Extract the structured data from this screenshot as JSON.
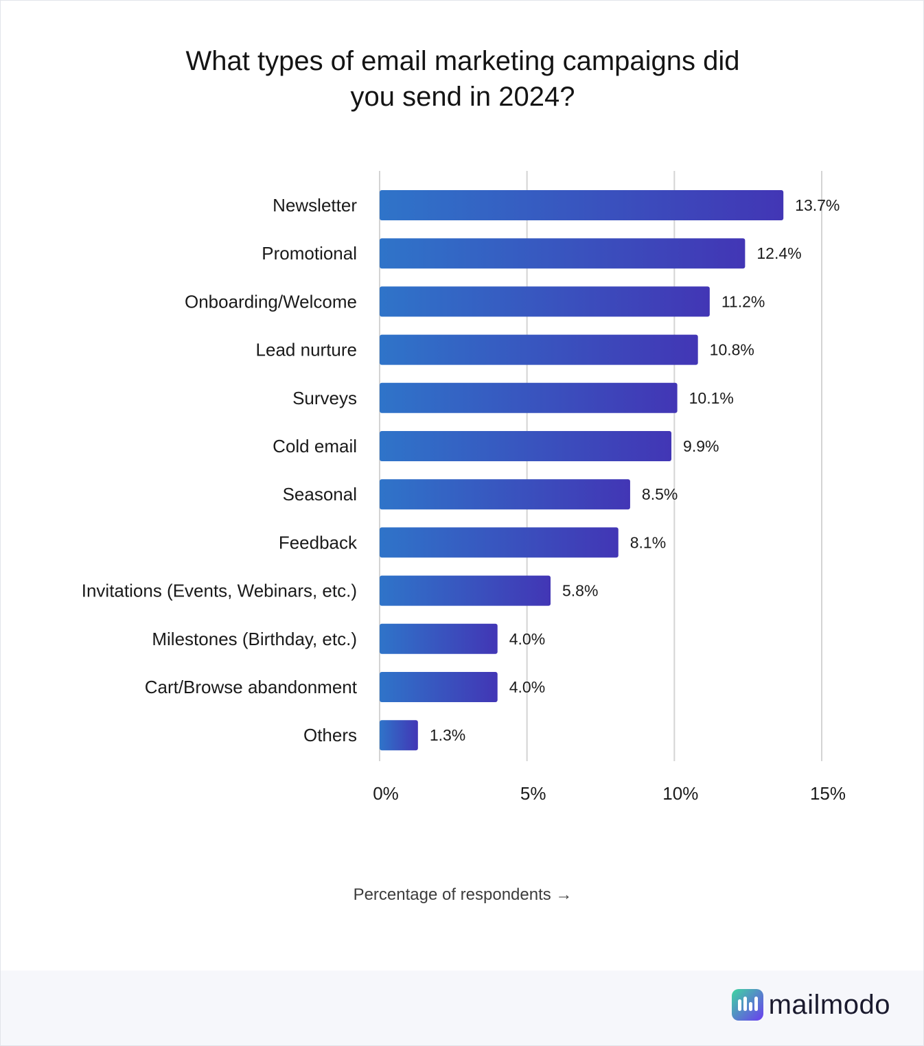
{
  "title_line1": "What types of email marketing campaigns did",
  "title_line2": "you send in 2024?",
  "x_axis_label": "Percentage of respondents →",
  "brand": {
    "name": "mailmodo",
    "icon": "mailmodo-logo-icon"
  },
  "colors": {
    "bar_start": "#2f74c9",
    "bar_end": "#4236b5",
    "grid": "#d4d4d4"
  },
  "chart_data": {
    "type": "bar",
    "orientation": "horizontal",
    "title": "What types of email marketing campaigns did you send in 2024?",
    "xlabel": "Percentage of respondents →",
    "ylabel": "",
    "categories": [
      "Newsletter",
      "Promotional",
      "Onboarding/Welcome",
      "Lead nurture",
      "Surveys",
      "Cold email",
      "Seasonal",
      "Feedback",
      "Invitations (Events, Webinars, etc.)",
      "Milestones (Birthday, etc.)",
      "Cart/Browse abandonment",
      "Others"
    ],
    "values": [
      13.7,
      12.4,
      11.2,
      10.8,
      10.1,
      9.9,
      8.5,
      8.1,
      5.8,
      4.0,
      4.0,
      1.3
    ],
    "value_labels": [
      "13.7%",
      "12.4%",
      "11.2%",
      "10.8%",
      "10.1%",
      "9.9%",
      "8.5%",
      "8.1%",
      "5.8%",
      "4.0%",
      "4.0%",
      "1.3%"
    ],
    "xlim": [
      0,
      15
    ],
    "xticks": [
      0,
      5,
      10,
      15
    ],
    "xtick_labels": [
      "0%",
      "5%",
      "10%",
      "15%"
    ],
    "grid": true,
    "legend": "none"
  }
}
